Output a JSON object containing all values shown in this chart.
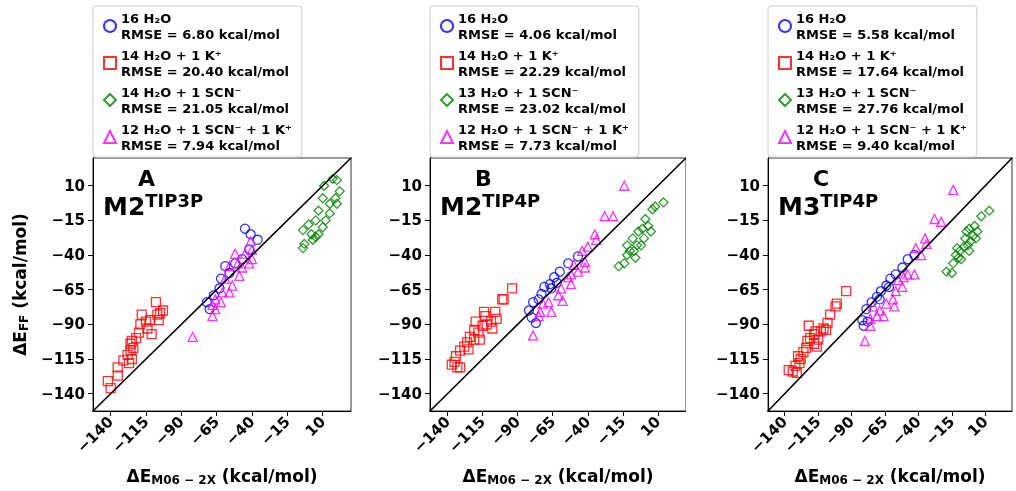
{
  "chart_data": [
    {
      "type": "scatter",
      "title": "A",
      "subtitle": "M2$^{TIP3P}$",
      "xlabel": "ΔE$_{M06 − 2X}$ (kcal/mol)",
      "ylabel": "ΔE$_{FF}$ (kcal/mol)",
      "xlim": [
        -152.5,
        30
      ],
      "ylim": [
        -152.5,
        30
      ],
      "xticks": [
        -140,
        -115,
        -90,
        -65,
        -40,
        -15,
        10
      ],
      "yticks": [
        -140,
        -115,
        -90,
        -65,
        -40,
        -15,
        10
      ],
      "legend": "top",
      "series": [
        {
          "name": "16 H₂O\nRMSE = 6.80 kcal/mol",
          "color": "#0000ff",
          "marker": "circle",
          "x": [
            -45,
            -41,
            -36,
            -42,
            -59,
            -72,
            -70,
            -67,
            -62,
            -56,
            -52,
            -47,
            -63
          ],
          "values": [
            -21,
            -25,
            -29,
            -36,
            -48,
            -74,
            -79,
            -69,
            -57,
            -53,
            -46,
            -43,
            -64
          ]
        },
        {
          "name": "14 H₂O + 1 K⁺\nRMSE = 20.40 kcal/mol",
          "color": "#ff0000",
          "marker": "square",
          "x": [
            -142,
            -140,
            -135,
            -135,
            -131,
            -128,
            -127,
            -126,
            -126,
            -125,
            -122,
            -120,
            -119,
            -118,
            -115,
            -114,
            -112,
            -111,
            -108,
            -107,
            -105,
            -103,
            -106,
            -124,
            -125
          ],
          "values": [
            -131,
            -136,
            -127,
            -121,
            -116,
            -112,
            -118,
            -109,
            -104,
            -102,
            -100,
            -96,
            -90,
            -83,
            -88,
            -93,
            -87,
            -97,
            -74,
            -83,
            -82,
            -80,
            -87,
            -107,
            -115
          ]
        },
        {
          "name": "14 H₂O + 1 SCN⁻\nRMSE = 21.05 kcal/mol",
          "color": "#008000",
          "marker": "diamond",
          "x": [
            11,
            17,
            20,
            19,
            20,
            15,
            10,
            7,
            5,
            0,
            -4,
            -3,
            -4,
            2,
            5,
            10,
            15,
            12,
            22,
            7,
            3
          ],
          "values": [
            10,
            15,
            14,
            1,
            -3,
            -3,
            1,
            -8,
            -15,
            -18,
            -22,
            -32,
            -35,
            -25,
            -27,
            -20,
            -10,
            -15,
            6,
            -25,
            -29
          ]
        },
        {
          "name": "12 H₂O + 1 SCN⁻ + 1 K⁺\nRMSE = 7.94 kcal/mol",
          "color": "#ff00ff",
          "marker": "triangle",
          "x": [
            -41,
            -40,
            -40,
            -52,
            -50,
            -47,
            -56,
            -59,
            -61,
            -66,
            -68,
            -68,
            -66,
            -54,
            -49,
            -82,
            -62,
            -56,
            -45,
            -42
          ],
          "values": [
            -30,
            -36,
            -43,
            -39,
            -46,
            -49,
            -48,
            -57,
            -67,
            -72,
            -76,
            -84,
            -79,
            -62,
            -55,
            -99,
            -74,
            -67,
            -39,
            -46
          ]
        },
        {
          "type": "line",
          "color": "#000000",
          "marker": "none",
          "line_style": "solid",
          "x": [
            -152.5,
            30
          ],
          "values": [
            -152.5,
            30
          ]
        }
      ]
    },
    {
      "type": "scatter",
      "title": "B",
      "subtitle": "M2$^{TIP4P}$",
      "xlabel": "ΔE$_{M06 − 2X}$ (kcal/mol)",
      "xlim": [
        -152.5,
        30
      ],
      "ylim": [
        -152.5,
        30
      ],
      "xticks": [
        -140,
        -115,
        -90,
        -65,
        -40,
        -15,
        10
      ],
      "yticks": [
        -140,
        -115,
        -90,
        -65,
        -40,
        -15,
        10
      ],
      "legend": "top",
      "series": [
        {
          "name": "16 H₂O\nRMSE = 4.06 kcal/mol",
          "color": "#0000ff",
          "marker": "circle",
          "x": [
            -82,
            -80,
            -77,
            -79,
            -75,
            -73,
            -71,
            -67,
            -64,
            -60,
            -54,
            -47,
            -62,
            -66
          ],
          "values": [
            -80,
            -85,
            -89,
            -74,
            -72,
            -68,
            -63,
            -61,
            -56,
            -52,
            -46,
            -41,
            -60,
            -64
          ]
        },
        {
          "name": "14 H₂O + 1 K⁺\nRMSE = 22.29 kcal/mol",
          "color": "#ff0000",
          "marker": "square",
          "x": [
            -137,
            -135,
            -133,
            -131,
            -134,
            -131,
            -128,
            -126,
            -124,
            -121,
            -120,
            -118,
            -117,
            -115,
            -113,
            -112,
            -109,
            -108,
            -106,
            -105,
            -114,
            -121,
            -101,
            -100,
            -94,
            -125
          ],
          "values": [
            -119,
            -117,
            -121,
            -121,
            -113,
            -109,
            -106,
            -103,
            -99,
            -94,
            -88,
            -96,
            -101,
            -91,
            -84,
            -90,
            -88,
            -93,
            -81,
            -86,
            -81,
            -101,
            -72,
            -72,
            -64,
            -108
          ]
        },
        {
          "name": "13 H₂O + 1 SCN⁻\nRMSE = 23.02 kcal/mol",
          "color": "#008000",
          "marker": "diamond",
          "x": [
            -18,
            -14,
            -12,
            -12,
            -8,
            -7,
            -5,
            -4,
            -1,
            0,
            1,
            3,
            6,
            8,
            14,
            -2,
            5,
            -10,
            -6
          ],
          "values": [
            -48,
            -46,
            -40,
            -33,
            -28,
            -37,
            -33,
            -23,
            -21,
            -28,
            -14,
            -19,
            -7,
            -5,
            -2,
            -33,
            -23,
            -37,
            -42
          ]
        },
        {
          "name": "12 H₂O + 1 SCN⁻ + 1 K⁺\nRMSE = 7.73 kcal/mol",
          "color": "#ff00ff",
          "marker": "triangle",
          "x": [
            -79,
            -74,
            -72,
            -66,
            -61,
            -58,
            -59,
            -52,
            -52,
            -47,
            -42,
            -44,
            -40,
            -35,
            -34,
            -28,
            -22,
            -14,
            -68,
            -54,
            -50,
            -42,
            -75
          ],
          "values": [
            -98,
            -81,
            -75,
            -81,
            -69,
            -73,
            -64,
            -61,
            -54,
            -52,
            -49,
            -37,
            -34,
            -25,
            -29,
            -12,
            -12,
            10,
            -74,
            -56,
            -47,
            -45,
            -84
          ]
        },
        {
          "type": "line",
          "color": "#000000",
          "marker": "none",
          "line_style": "solid",
          "x": [
            -152.5,
            30
          ],
          "values": [
            -152.5,
            30
          ]
        }
      ]
    },
    {
      "type": "scatter",
      "title": "C",
      "subtitle": "M3$^{TIP4P}$",
      "xlabel": "ΔE$_{M06 − 2X}$ (kcal/mol)",
      "xlim": [
        -152.5,
        30
      ],
      "ylim": [
        -152.5,
        30
      ],
      "xticks": [
        -140,
        -115,
        -90,
        -65,
        -40,
        -15,
        10
      ],
      "yticks": [
        -140,
        -115,
        -90,
        -65,
        -40,
        -15,
        10
      ],
      "legend": "top",
      "series": [
        {
          "name": "16 H₂O\nRMSE = 5.58 kcal/mol",
          "color": "#0000ff",
          "marker": "circle",
          "x": [
            -82,
            -81,
            -78,
            -79,
            -75,
            -71,
            -68,
            -64,
            -61,
            -57,
            -52,
            -48,
            -43,
            -69,
            -62
          ],
          "values": [
            -87,
            -91,
            -88,
            -79,
            -74,
            -70,
            -66,
            -62,
            -57,
            -54,
            -49,
            -43,
            -40,
            -72,
            -63
          ]
        },
        {
          "name": "14 H₂O + 1 K⁺\nRMSE = 17.64 kcal/mol",
          "color": "#ff0000",
          "marker": "square",
          "x": [
            -137,
            -134,
            -131,
            -132,
            -129,
            -130,
            -128,
            -126,
            -124,
            -123,
            -121,
            -118,
            -117,
            -115,
            -113,
            -111,
            -109,
            -122,
            -118,
            -108,
            -106,
            -102,
            -101,
            -94,
            -116
          ],
          "values": [
            -123,
            -124,
            -125,
            -120,
            -118,
            -113,
            -115,
            -110,
            -107,
            -102,
            -100,
            -104,
            -95,
            -101,
            -95,
            -93,
            -94,
            -91,
            -97,
            -89,
            -83,
            -77,
            -75,
            -66,
            -106
          ]
        },
        {
          "name": "13 H₂O + 1 SCN⁻\nRMSE = 27.76 kcal/mol",
          "color": "#008000",
          "marker": "diamond",
          "x": [
            -19,
            -15,
            -14,
            -12,
            -11,
            -9,
            -8,
            -6,
            -5,
            -4,
            -2,
            -1,
            1,
            2,
            4,
            7,
            13,
            -10,
            -3,
            3,
            -2
          ],
          "values": [
            -52,
            -53,
            -46,
            -40,
            -35,
            -37,
            -43,
            -34,
            -28,
            -23,
            -21,
            -30,
            -26,
            -19,
            -23,
            -12,
            -8,
            -42,
            -33,
            -28,
            -37
          ]
        },
        {
          "name": "12 H₂O + 1 SCN⁻ + 1 K⁺\nRMSE = 9.40 kcal/mol",
          "color": "#ff00ff",
          "marker": "triangle",
          "x": [
            -80,
            -76,
            -74,
            -71,
            -66,
            -64,
            -59,
            -58,
            -57,
            -52,
            -51,
            -48,
            -43,
            -42,
            -38,
            -35,
            -34,
            -28,
            -23,
            -14,
            -69,
            -55,
            -76
          ],
          "values": [
            -102,
            -91,
            -77,
            -84,
            -84,
            -75,
            -72,
            -77,
            -66,
            -63,
            -56,
            -54,
            -54,
            -35,
            -40,
            -28,
            -32,
            -14,
            -16,
            7,
            -80,
            -58,
            -86
          ]
        },
        {
          "type": "line",
          "color": "#000000",
          "marker": "none",
          "line_style": "solid",
          "x": [
            -152.5,
            30
          ],
          "values": [
            -152.5,
            30
          ]
        }
      ]
    }
  ]
}
